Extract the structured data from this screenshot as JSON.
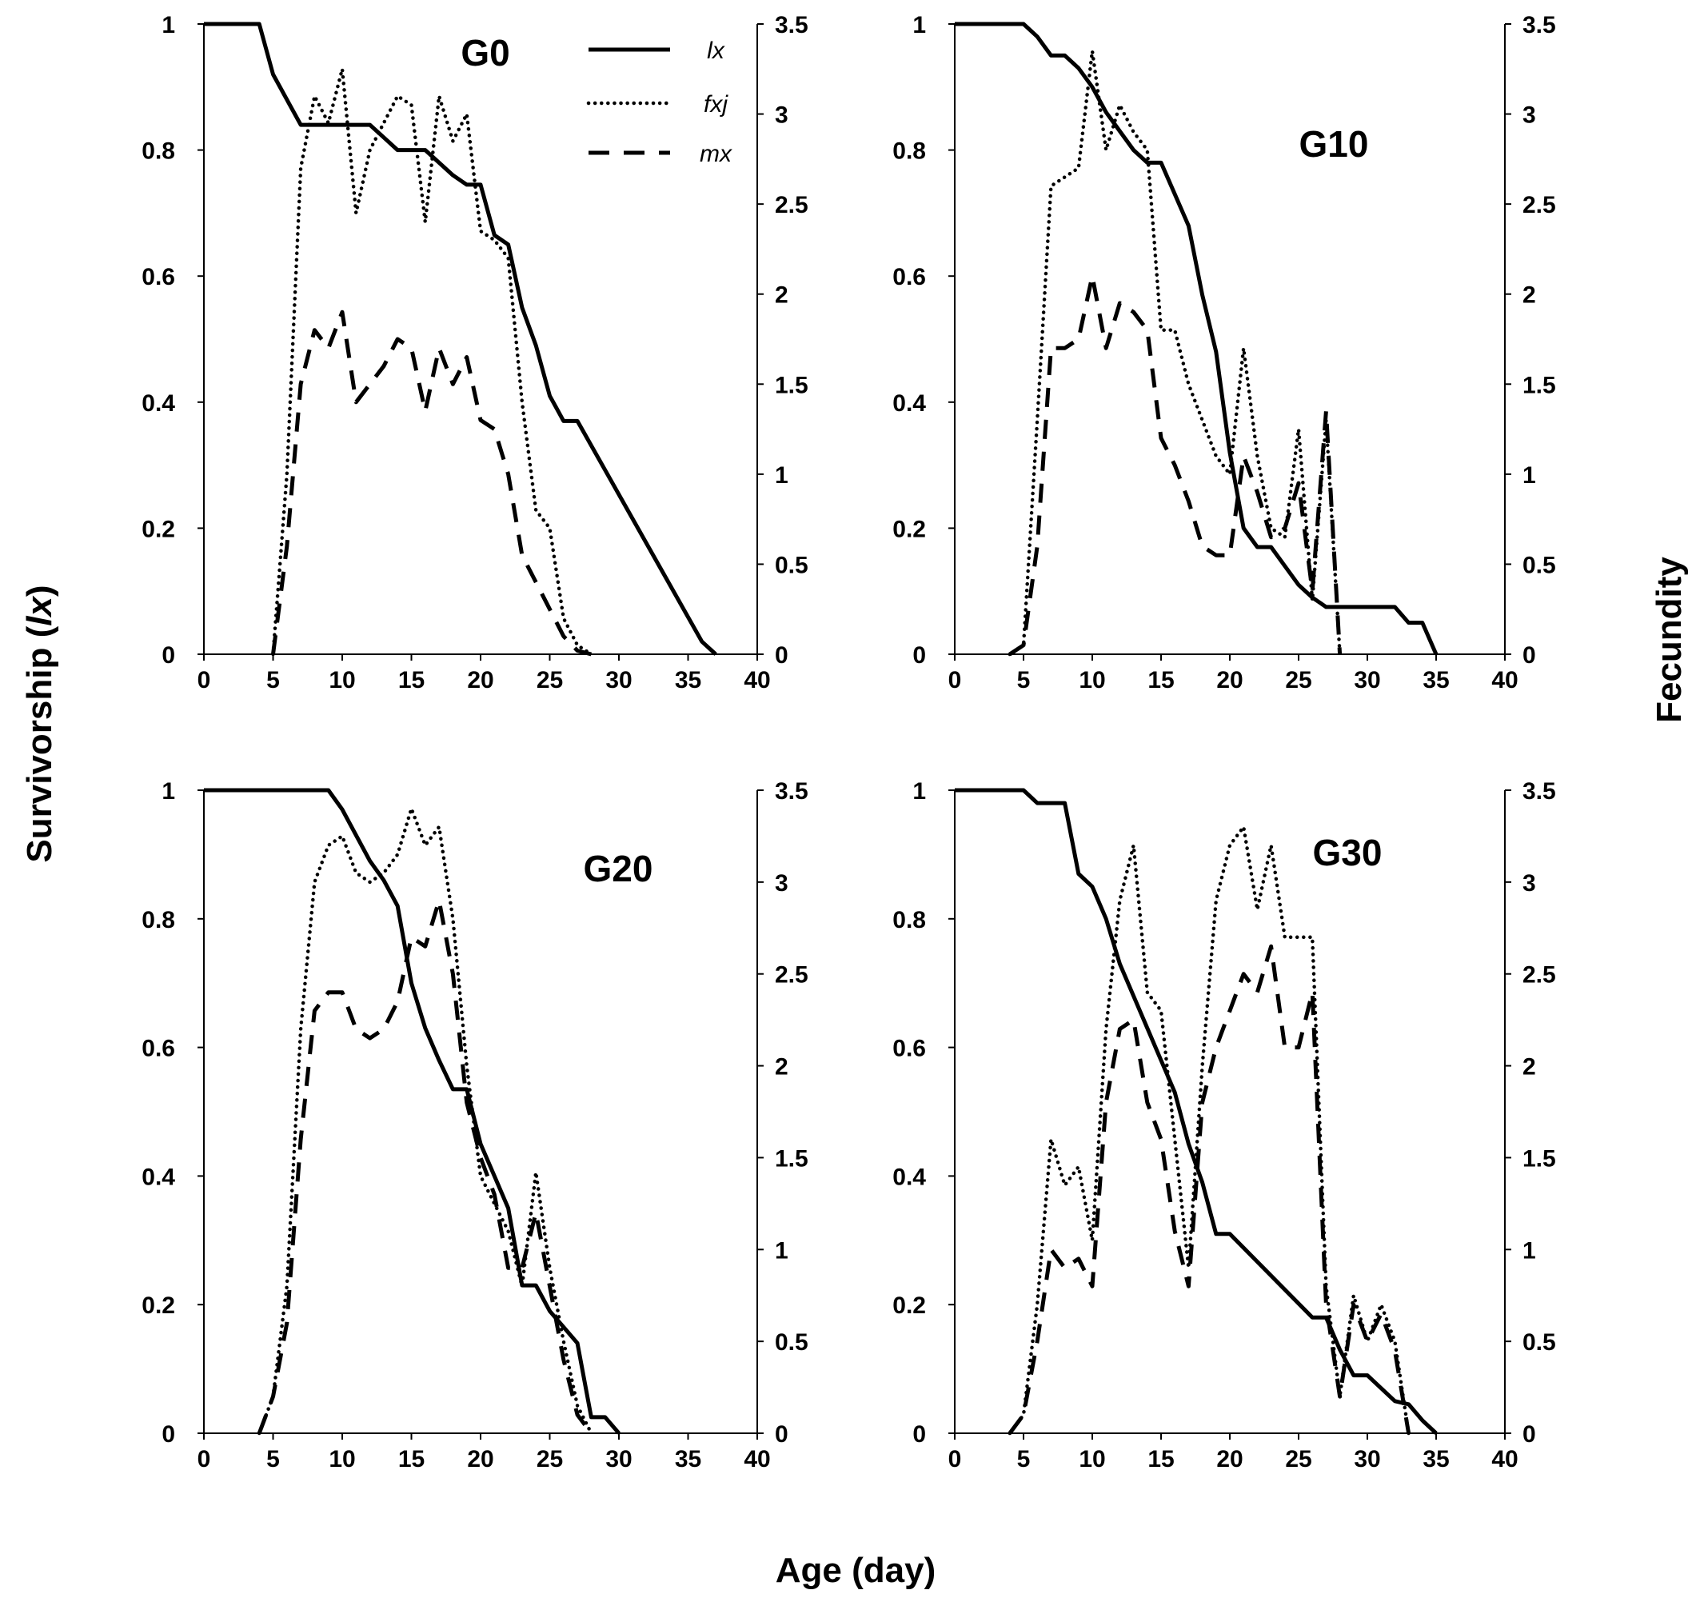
{
  "chart_data": {
    "type": "line",
    "shared": {
      "xlabel": "Age (day)",
      "ylabel_left": "Survivorship (",
      "ylabel_left_italic": "lx",
      "ylabel_left_close": ")",
      "ylabel_right": "Fecundity",
      "xlim": [
        0,
        40
      ],
      "xticks": [
        0,
        5,
        10,
        15,
        20,
        25,
        30,
        35,
        40
      ],
      "ylim_left": [
        0,
        1
      ],
      "yticks_left": [
        0,
        0.2,
        0.4,
        0.6,
        0.8,
        1
      ],
      "ylim_right": [
        0,
        3.5
      ],
      "yticks_right": [
        0,
        0.5,
        1,
        1.5,
        2,
        2.5,
        3,
        3.5
      ],
      "grid": false,
      "legend": {
        "placement": "top-right of first panel",
        "entries": [
          "lx",
          "fxj",
          "mx"
        ]
      }
    },
    "panels": [
      {
        "title": "G0",
        "series": [
          {
            "name": "lx",
            "axis": "left",
            "style": "solid",
            "x": [
              0,
              4,
              5,
              6,
              7,
              12,
              13,
              14,
              16,
              17,
              18,
              19,
              20,
              21,
              22,
              23,
              24,
              25,
              26,
              27,
              36,
              37
            ],
            "y": [
              1,
              1,
              0.92,
              0.88,
              0.84,
              0.84,
              0.82,
              0.8,
              0.8,
              0.78,
              0.76,
              0.745,
              0.745,
              0.665,
              0.65,
              0.55,
              0.49,
              0.41,
              0.37,
              0.37,
              0.02,
              0
            ]
          },
          {
            "name": "fxj",
            "axis": "right",
            "style": "dotted",
            "x": [
              5,
              6,
              7,
              8,
              9,
              10,
              11,
              12,
              13,
              14,
              15,
              16,
              17,
              18,
              19,
              20,
              21,
              22,
              23,
              24,
              25,
              26,
              27,
              28
            ],
            "y": [
              0,
              1.0,
              2.7,
              3.1,
              2.95,
              3.25,
              2.45,
              2.8,
              2.95,
              3.1,
              3.05,
              2.4,
              3.1,
              2.85,
              3.0,
              2.35,
              2.3,
              2.2,
              1.4,
              0.8,
              0.7,
              0.2,
              0.05,
              0
            ]
          },
          {
            "name": "mx",
            "axis": "right",
            "style": "dashed",
            "x": [
              5,
              6,
              7,
              8,
              9,
              10,
              11,
              12,
              13,
              14,
              15,
              16,
              17,
              18,
              19,
              20,
              21,
              22,
              23,
              24,
              25,
              26,
              27,
              28
            ],
            "y": [
              0,
              0.6,
              1.5,
              1.8,
              1.7,
              1.9,
              1.4,
              1.5,
              1.6,
              1.75,
              1.7,
              1.35,
              1.7,
              1.5,
              1.65,
              1.3,
              1.25,
              1.0,
              0.55,
              0.4,
              0.25,
              0.1,
              0.02,
              0
            ]
          }
        ]
      },
      {
        "title": "G10",
        "series": [
          {
            "name": "lx",
            "axis": "left",
            "style": "solid",
            "x": [
              0,
              5,
              6,
              7,
              8,
              9,
              10,
              11,
              12,
              13,
              14,
              15,
              16,
              17,
              18,
              19,
              20,
              21,
              22,
              23,
              24,
              25,
              26,
              27,
              32,
              33,
              34,
              35
            ],
            "y": [
              1,
              1,
              0.98,
              0.95,
              0.95,
              0.93,
              0.9,
              0.86,
              0.83,
              0.8,
              0.78,
              0.78,
              0.73,
              0.68,
              0.57,
              0.48,
              0.32,
              0.2,
              0.17,
              0.17,
              0.14,
              0.11,
              0.09,
              0.075,
              0.075,
              0.05,
              0.05,
              0
            ]
          },
          {
            "name": "fxj",
            "axis": "right",
            "style": "dotted",
            "x": [
              4,
              5,
              6,
              7,
              8,
              9,
              10,
              11,
              12,
              13,
              14,
              15,
              16,
              17,
              18,
              19,
              20,
              21,
              22,
              23,
              24,
              25,
              26,
              27,
              28
            ],
            "y": [
              0,
              0.05,
              1.3,
              2.6,
              2.65,
              2.7,
              3.35,
              2.8,
              3.05,
              2.9,
              2.8,
              1.8,
              1.8,
              1.5,
              1.3,
              1.1,
              1.0,
              1.7,
              1.1,
              0.7,
              0.65,
              1.25,
              0.3,
              1.3,
              0
            ]
          },
          {
            "name": "mx",
            "axis": "right",
            "style": "dashed",
            "x": [
              4,
              5,
              6,
              7,
              8,
              9,
              10,
              11,
              12,
              13,
              14,
              15,
              16,
              17,
              18,
              19,
              20,
              21,
              22,
              23,
              24,
              25,
              26,
              27,
              28
            ],
            "y": [
              0,
              0.05,
              0.6,
              1.7,
              1.7,
              1.75,
              2.1,
              1.7,
              1.95,
              1.9,
              1.8,
              1.2,
              1.05,
              0.85,
              0.6,
              0.55,
              0.55,
              1.1,
              0.9,
              0.65,
              0.7,
              0.95,
              0.35,
              1.35,
              0
            ]
          }
        ]
      },
      {
        "title": "G20",
        "series": [
          {
            "name": "lx",
            "axis": "left",
            "style": "solid",
            "x": [
              0,
              9,
              10,
              11,
              12,
              13,
              14,
              15,
              16,
              17,
              18,
              19,
              20,
              21,
              22,
              23,
              24,
              25,
              26,
              27,
              28,
              29,
              30
            ],
            "y": [
              1,
              1,
              0.97,
              0.93,
              0.89,
              0.86,
              0.82,
              0.7,
              0.63,
              0.58,
              0.535,
              0.535,
              0.45,
              0.4,
              0.35,
              0.23,
              0.23,
              0.19,
              0.165,
              0.14,
              0.025,
              0.025,
              0
            ]
          },
          {
            "name": "fxj",
            "axis": "right",
            "style": "dotted",
            "x": [
              4,
              5,
              6,
              7,
              8,
              9,
              10,
              11,
              12,
              13,
              14,
              15,
              16,
              17,
              18,
              19,
              20,
              21,
              22,
              23,
              24,
              25,
              26,
              27,
              28
            ],
            "y": [
              0,
              0.2,
              0.8,
              2.2,
              3.0,
              3.2,
              3.25,
              3.05,
              3.0,
              3.05,
              3.15,
              3.4,
              3.2,
              3.3,
              2.8,
              2.0,
              1.4,
              1.25,
              1.1,
              0.8,
              1.42,
              0.9,
              0.5,
              0.15,
              0
            ]
          },
          {
            "name": "mx",
            "axis": "right",
            "style": "dashed",
            "x": [
              4,
              5,
              6,
              7,
              8,
              9,
              10,
              11,
              12,
              13,
              14,
              15,
              16,
              17,
              18,
              19,
              20,
              21,
              22,
              23,
              24,
              25,
              26,
              27,
              28
            ],
            "y": [
              0,
              0.2,
              0.6,
              1.6,
              2.3,
              2.4,
              2.4,
              2.2,
              2.15,
              2.2,
              2.35,
              2.7,
              2.65,
              2.9,
              2.5,
              1.8,
              1.5,
              1.3,
              0.9,
              0.9,
              1.2,
              0.8,
              0.4,
              0.1,
              0
            ]
          }
        ]
      },
      {
        "title": "G30",
        "series": [
          {
            "name": "lx",
            "axis": "left",
            "style": "solid",
            "x": [
              0,
              5,
              6,
              8,
              9,
              10,
              11,
              12,
              13,
              14,
              15,
              16,
              17,
              18,
              19,
              20,
              26,
              27,
              28,
              29,
              30,
              31,
              32,
              33,
              34,
              35
            ],
            "y": [
              1,
              1,
              0.98,
              0.98,
              0.87,
              0.85,
              0.8,
              0.73,
              0.68,
              0.63,
              0.58,
              0.53,
              0.45,
              0.39,
              0.31,
              0.31,
              0.18,
              0.18,
              0.13,
              0.09,
              0.09,
              0.07,
              0.05,
              0.045,
              0.02,
              0
            ]
          },
          {
            "name": "fxj",
            "axis": "right",
            "style": "dotted",
            "x": [
              4,
              5,
              6,
              7,
              8,
              9,
              10,
              11,
              12,
              13,
              14,
              15,
              16,
              17,
              18,
              19,
              20,
              21,
              22,
              23,
              24,
              25,
              26,
              27,
              28,
              29,
              30,
              31,
              32,
              33
            ],
            "y": [
              0,
              0.1,
              0.7,
              1.6,
              1.35,
              1.45,
              1.05,
              2.2,
              2.9,
              3.2,
              2.4,
              2.3,
              1.6,
              0.9,
              2.0,
              2.9,
              3.2,
              3.3,
              2.85,
              3.2,
              2.7,
              2.7,
              2.7,
              0.8,
              0.2,
              0.75,
              0.5,
              0.7,
              0.5,
              0
            ]
          },
          {
            "name": "mx",
            "axis": "right",
            "style": "dashed",
            "x": [
              4,
              5,
              6,
              7,
              8,
              9,
              10,
              11,
              12,
              13,
              14,
              15,
              16,
              17,
              18,
              19,
              20,
              21,
              22,
              23,
              24,
              25,
              26,
              27,
              28,
              29,
              30,
              31,
              32,
              33
            ],
            "y": [
              0,
              0.1,
              0.5,
              1.0,
              0.9,
              0.95,
              0.8,
              1.8,
              2.2,
              2.25,
              1.8,
              1.6,
              1.1,
              0.8,
              1.8,
              2.1,
              2.3,
              2.5,
              2.4,
              2.65,
              2.1,
              2.1,
              2.4,
              0.7,
              0.2,
              0.7,
              0.5,
              0.65,
              0.45,
              0
            ]
          }
        ]
      }
    ]
  }
}
